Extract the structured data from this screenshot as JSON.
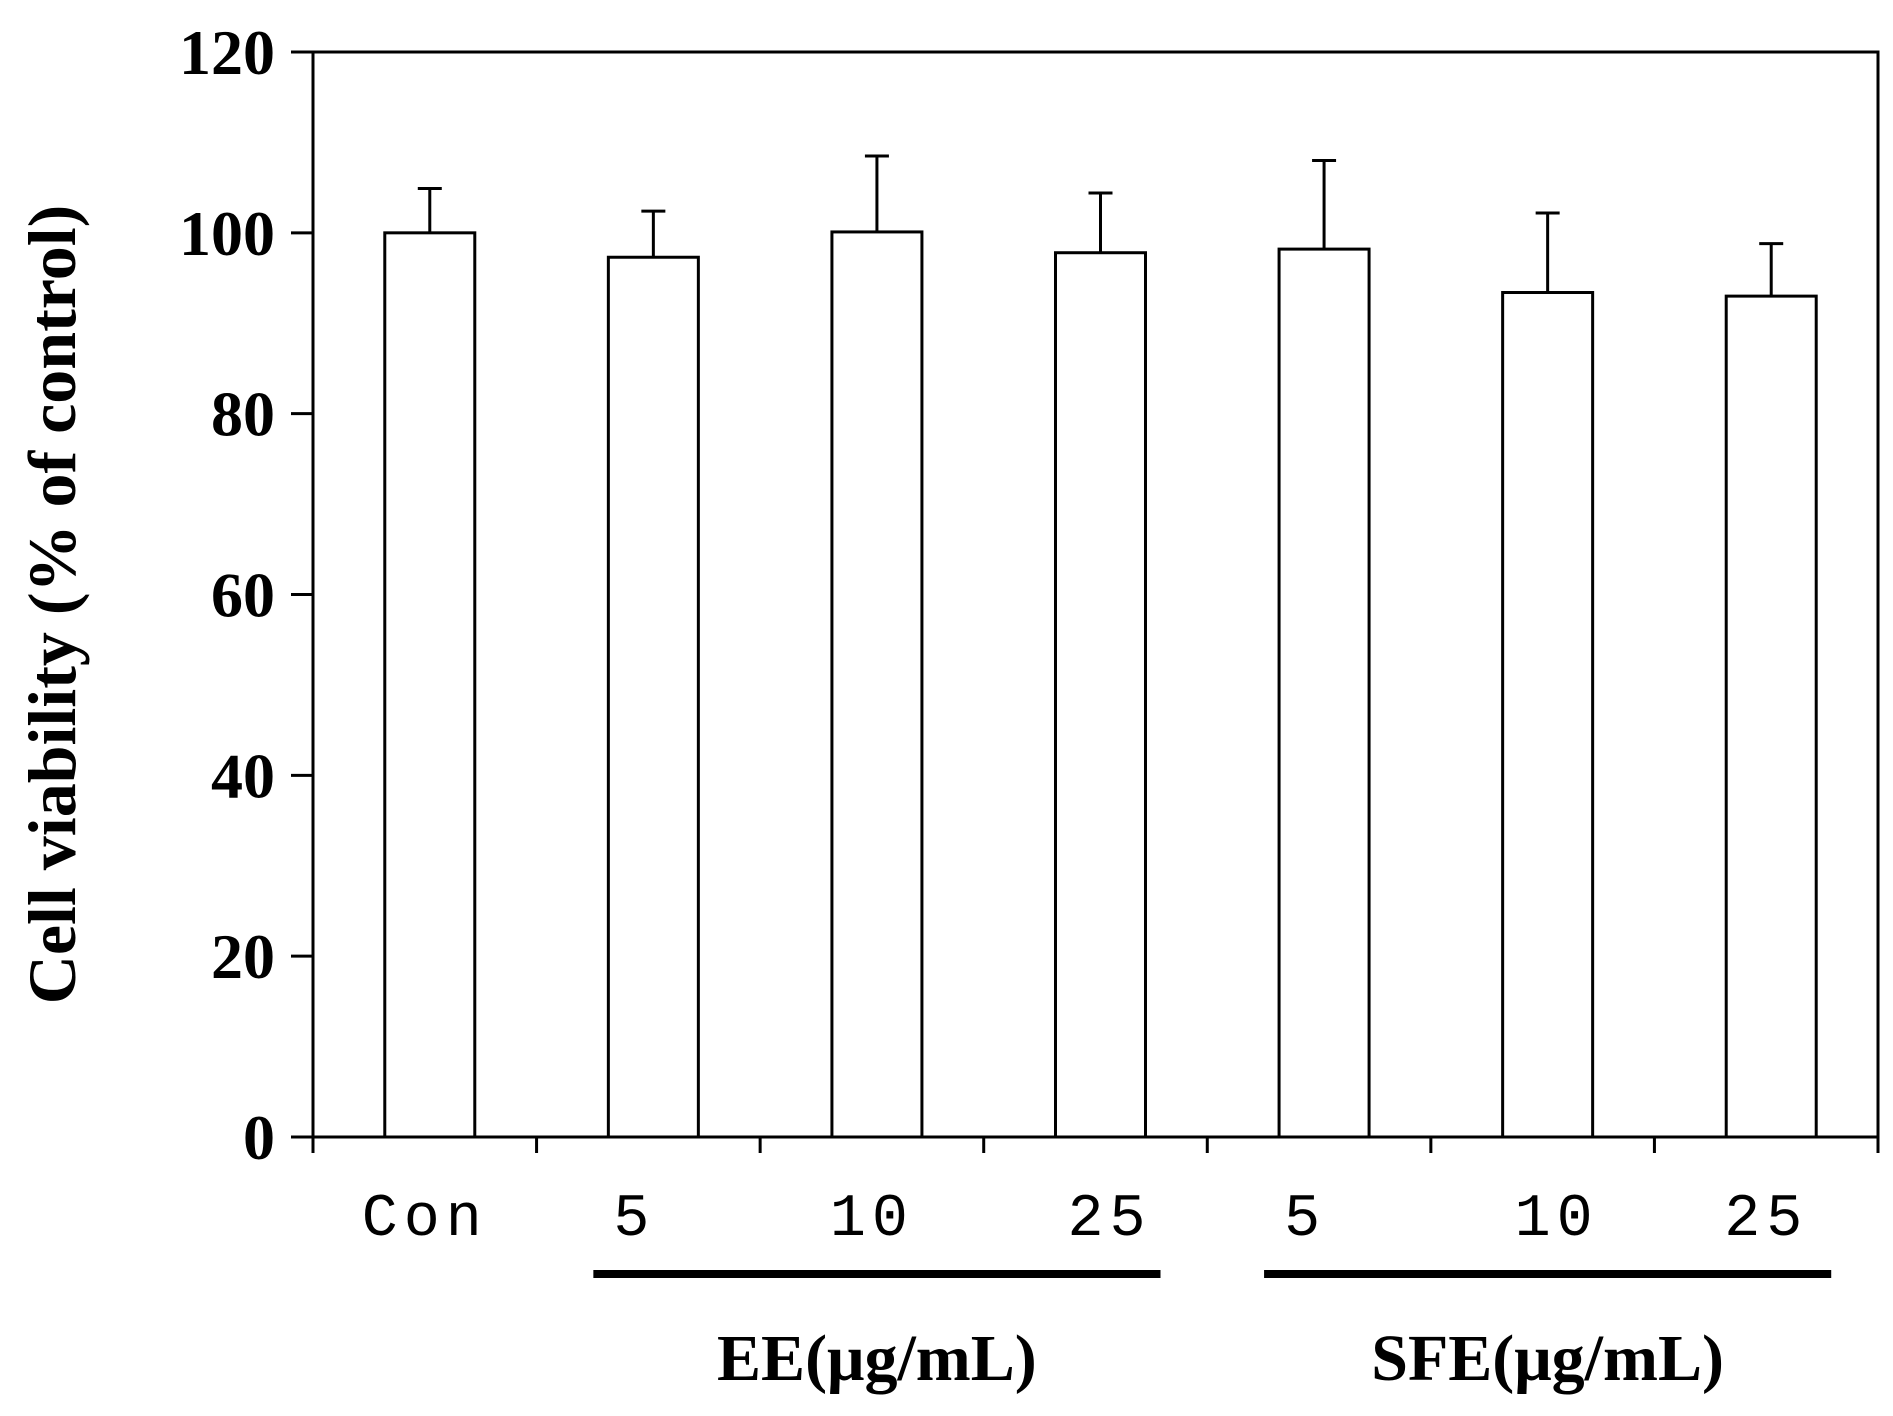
{
  "chart_data": {
    "type": "bar",
    "ylabel": "Cell viability (% of control)",
    "ylim": [
      0,
      120
    ],
    "yticks": [
      "0",
      "20",
      "40",
      "60",
      "80",
      "100",
      "120"
    ],
    "categories": [
      "Con",
      "5",
      "10",
      "25",
      "5",
      "10",
      "25"
    ],
    "values": [
      100,
      97.3,
      100.1,
      97.8,
      98.2,
      93.4,
      93.0
    ],
    "errors": [
      4.9,
      5.1,
      8.4,
      6.6,
      9.8,
      8.8,
      5.8
    ],
    "groups": [
      {
        "label": "EE(μg/mL)",
        "members": [
          1,
          2,
          3
        ]
      },
      {
        "label": "SFE(μg/mL)",
        "members": [
          4,
          5,
          6
        ]
      }
    ],
    "bar_color": "#ffffff",
    "edge_color": "#000000",
    "grid": false
  }
}
